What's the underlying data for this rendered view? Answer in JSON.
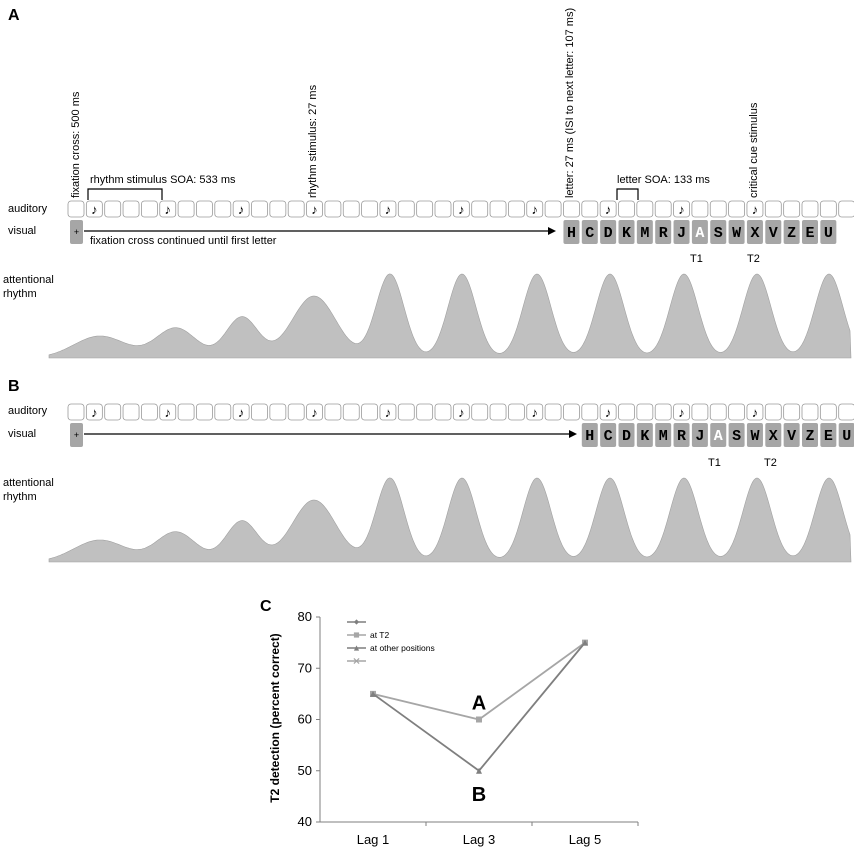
{
  "panels": {
    "A": "A",
    "B": "B",
    "C": "C"
  },
  "row_labels": {
    "auditory": "auditory",
    "visual": "visual",
    "attentional_line1": "attentional",
    "attentional_line2": "rhythm"
  },
  "annotations": {
    "fixation_cross": "fixation cross: 500 ms",
    "rhythm_stimulus_duration": "rhythm stimulus: 27 ms",
    "letter_duration": "letter: 27 ms (ISI to next letter: 107 ms)",
    "critical_cue": "critical cue stimulus",
    "rhythm_soa": "rhythm stimulus  SOA: 533 ms",
    "letter_soa": "letter  SOA: 133 ms",
    "fixation_continued": "fixation cross continued until first letter"
  },
  "glyphs": {
    "note": "♪",
    "fixation": "+"
  },
  "targets": {
    "t1": "T1",
    "t2": "T2"
  },
  "letters": [
    "H",
    "C",
    "D",
    "K",
    "M",
    "R",
    "J",
    "A",
    "S",
    "W",
    "X",
    "V",
    "Z",
    "E",
    "U"
  ],
  "t1_letter": "A",
  "colors": {
    "stimulus_box": "#a6a6a6",
    "rhythm_fill": "#c0c0c0",
    "series_at_t2": "#a6a6a6",
    "series_other": "#7f7f7f"
  },
  "chart_data": {
    "type": "line",
    "title": "",
    "xlabel": "",
    "ylabel": "T2 detection (percent correct)",
    "categories": [
      "Lag 1",
      "Lag 3",
      "Lag 5"
    ],
    "ylim": [
      40,
      80
    ],
    "yticks": [
      40,
      50,
      60,
      70,
      80
    ],
    "grid": false,
    "legend_position": "top-left",
    "legend_entries": [
      "",
      "at T2",
      "at other positions",
      ""
    ],
    "series": [
      {
        "name": "at T2",
        "values": [
          65,
          60,
          75
        ],
        "color": "#a6a6a6",
        "marker": "square"
      },
      {
        "name": "at other positions",
        "values": [
          65,
          50,
          75
        ],
        "color": "#7f7f7f",
        "marker": "triangle"
      }
    ],
    "point_annotations": [
      {
        "label": "A",
        "category": "Lag 3",
        "value": 60
      },
      {
        "label": "B",
        "category": "Lag 3",
        "value": 50
      }
    ]
  }
}
